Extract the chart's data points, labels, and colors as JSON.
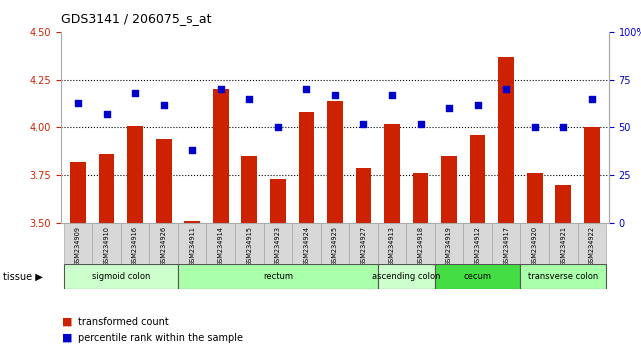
{
  "title": "GDS3141 / 206075_s_at",
  "samples": [
    "GSM234909",
    "GSM234910",
    "GSM234916",
    "GSM234926",
    "GSM234911",
    "GSM234914",
    "GSM234915",
    "GSM234923",
    "GSM234924",
    "GSM234925",
    "GSM234927",
    "GSM234913",
    "GSM234918",
    "GSM234919",
    "GSM234912",
    "GSM234917",
    "GSM234920",
    "GSM234921",
    "GSM234922"
  ],
  "bar_values": [
    3.82,
    3.86,
    4.01,
    3.94,
    3.51,
    4.2,
    3.85,
    3.73,
    4.08,
    4.14,
    3.79,
    4.02,
    3.76,
    3.85,
    3.96,
    4.37,
    3.76,
    3.7,
    4.0
  ],
  "dot_values": [
    63,
    57,
    68,
    62,
    38,
    70,
    65,
    50,
    70,
    67,
    52,
    67,
    52,
    60,
    62,
    70,
    50,
    50,
    65
  ],
  "ylim_left": [
    3.5,
    4.5
  ],
  "ylim_right": [
    0,
    100
  ],
  "yticks_left": [
    3.5,
    3.75,
    4.0,
    4.25,
    4.5
  ],
  "yticks_right": [
    0,
    25,
    50,
    75,
    100
  ],
  "ytick_labels_right": [
    "0",
    "25",
    "50",
    "75",
    "100%"
  ],
  "hlines": [
    3.75,
    4.0,
    4.25
  ],
  "tissue_groups": [
    {
      "label": "sigmoid colon",
      "start": 0,
      "end": 4,
      "color": "#ccffcc"
    },
    {
      "label": "rectum",
      "start": 4,
      "end": 11,
      "color": "#aaffaa"
    },
    {
      "label": "ascending colon",
      "start": 11,
      "end": 13,
      "color": "#ccffcc"
    },
    {
      "label": "cecum",
      "start": 13,
      "end": 16,
      "color": "#55ee55"
    },
    {
      "label": "transverse colon",
      "start": 16,
      "end": 19,
      "color": "#aaffaa"
    }
  ],
  "bar_color": "#cc2200",
  "dot_color": "#0000cc",
  "legend_bar_label": "transformed count",
  "legend_dot_label": "percentile rank within the sample",
  "bg_color": "#ffffff",
  "plot_bg_color": "#ffffff",
  "tick_color_left": "#cc2200",
  "tick_color_right": "#0000cc",
  "bar_width": 0.55,
  "dot_size": 25
}
